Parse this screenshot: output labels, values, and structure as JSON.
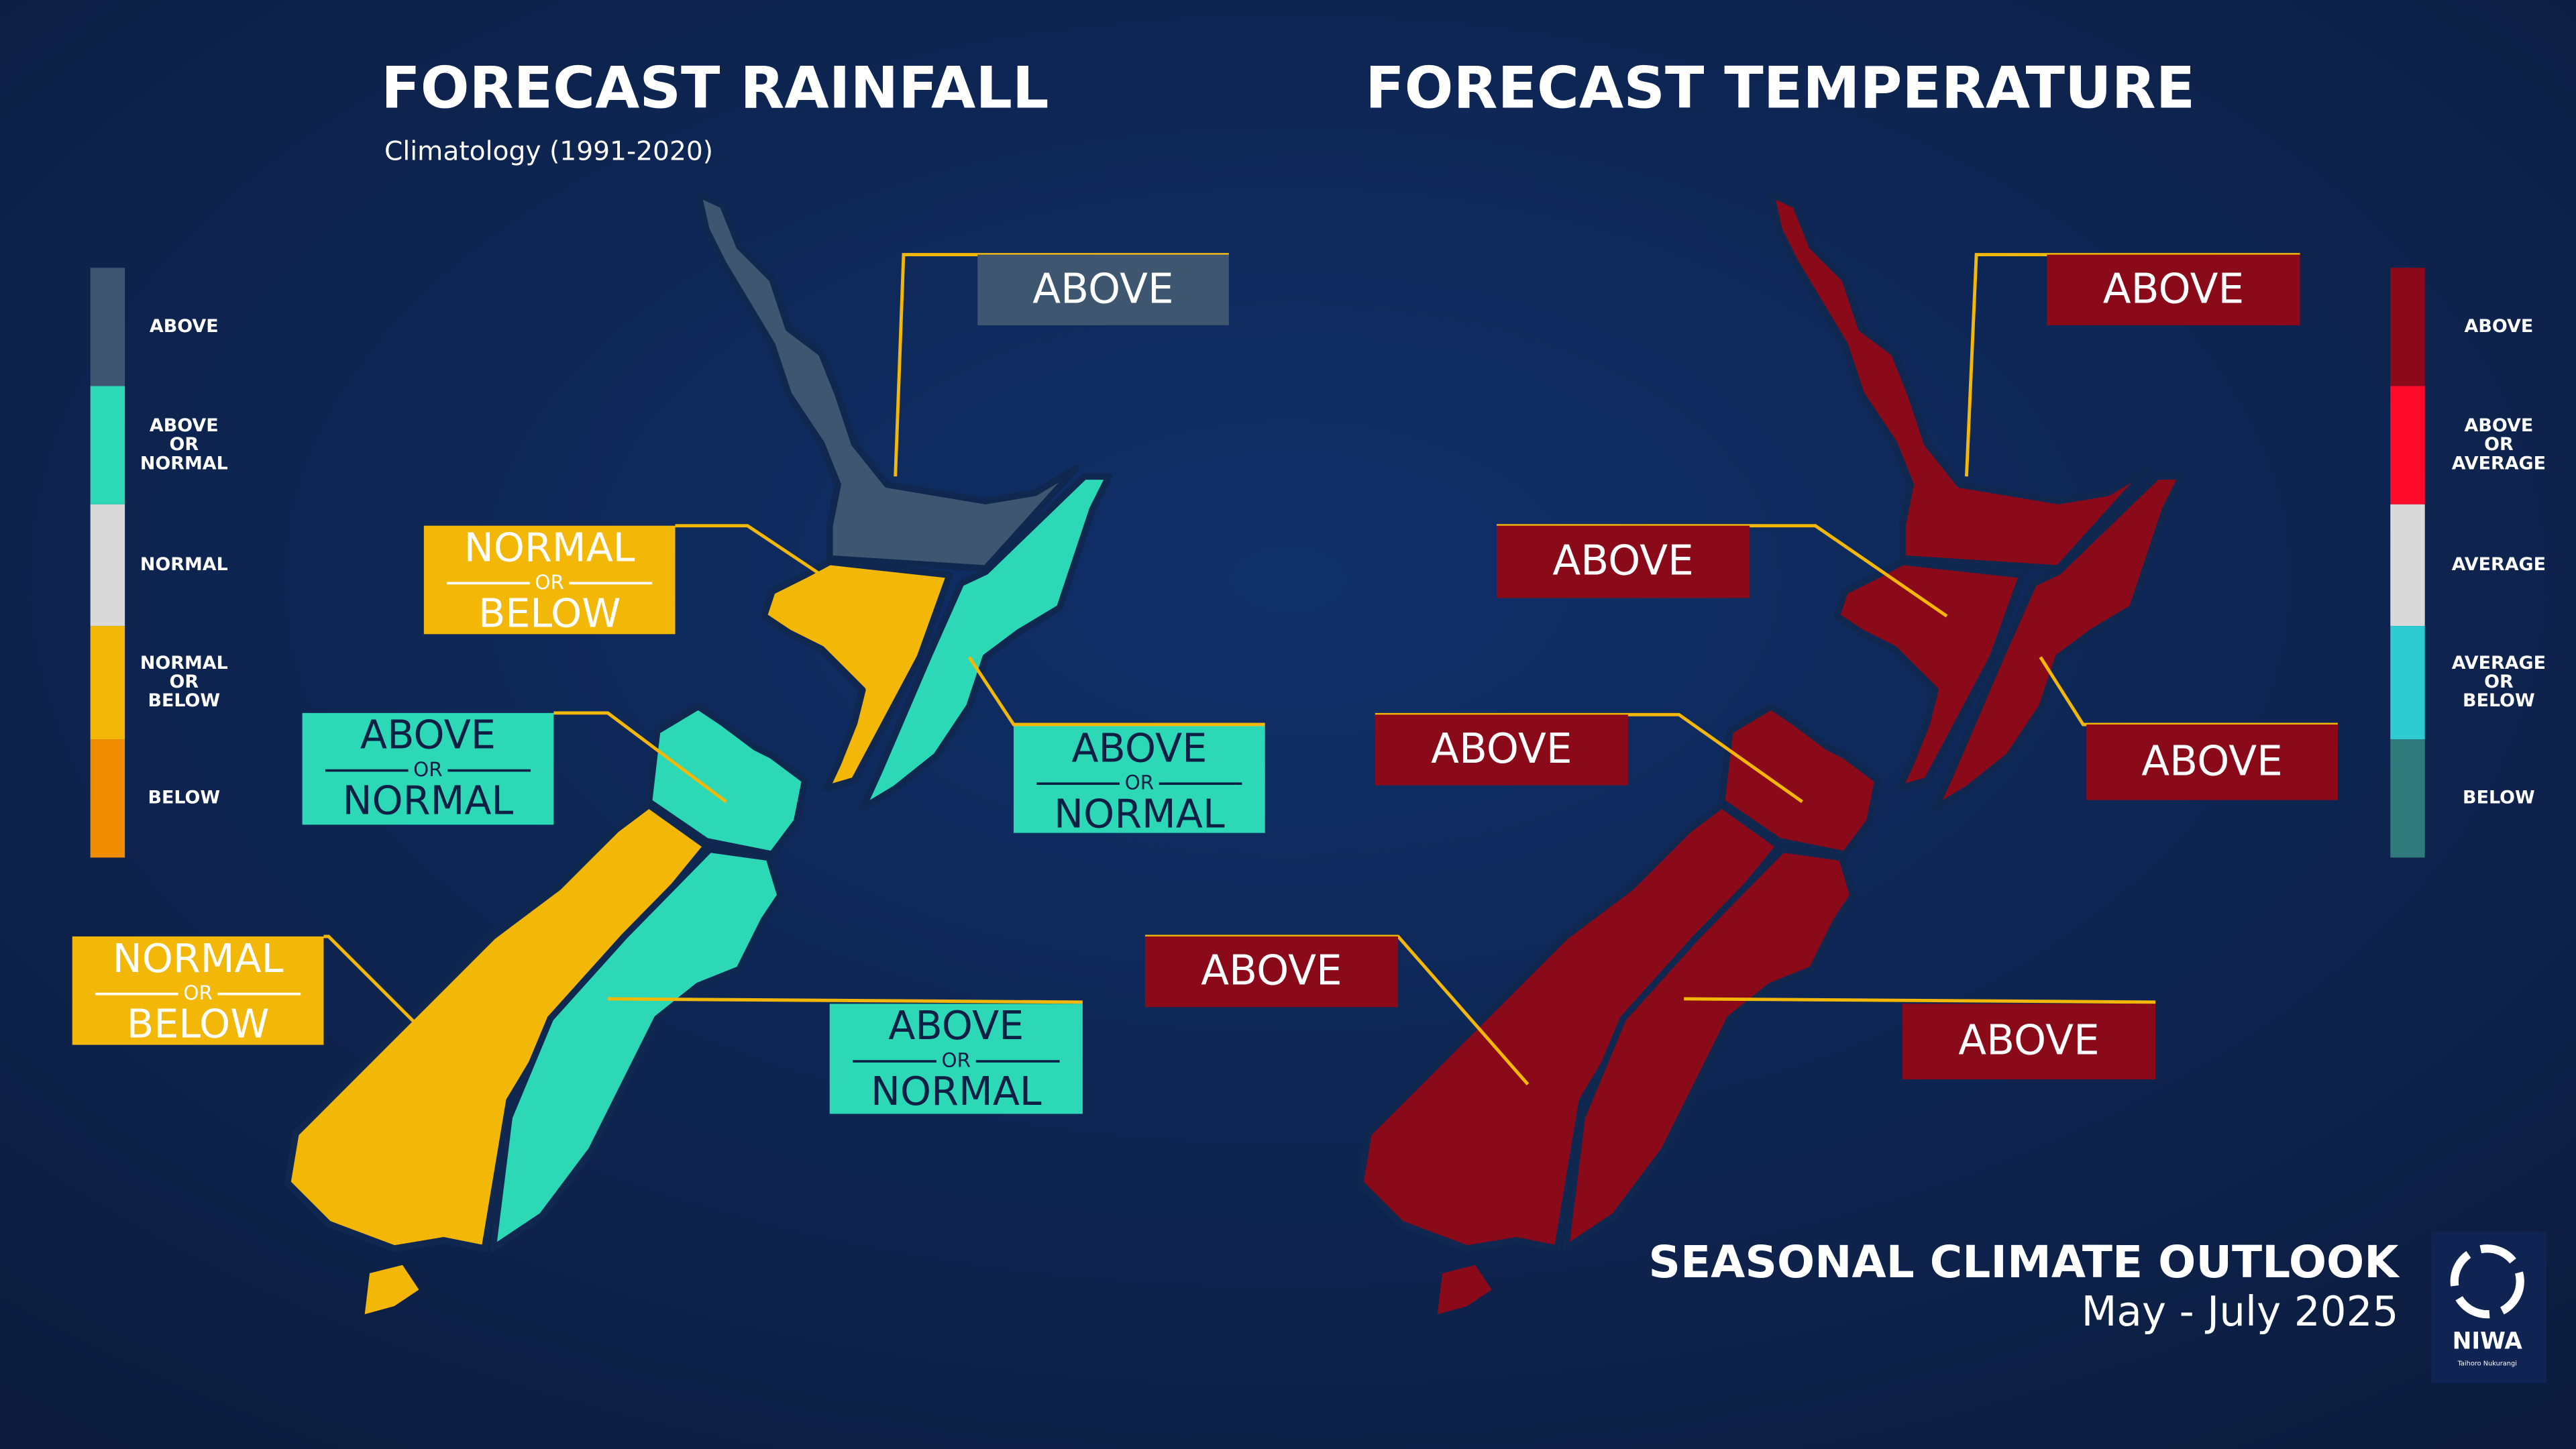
{
  "rainfall": {
    "title": "FORECAST RAINFALL",
    "subtitle": "Climatology (1991-2020)",
    "legend": [
      {
        "lines": [
          "ABOVE"
        ],
        "color": "#3e5670"
      },
      {
        "lines": [
          "ABOVE",
          "OR",
          "NORMAL"
        ],
        "color": "#2dd8b6"
      },
      {
        "lines": [
          "NORMAL"
        ],
        "color": "#d9d9d9"
      },
      {
        "lines": [
          "NORMAL",
          "OR",
          "BELOW"
        ],
        "color": "#f2b707"
      },
      {
        "lines": [
          "BELOW"
        ],
        "color": "#f08c00"
      }
    ],
    "regions": [
      {
        "lines": [
          "ABOVE"
        ],
        "color": "#3e5670",
        "text_color": "#ffffff"
      },
      {
        "lines": [
          "NORMAL",
          "OR",
          "BELOW"
        ],
        "color": "#f2b707",
        "text_color": "#ffffff"
      },
      {
        "lines": [
          "ABOVE",
          "OR",
          "NORMAL"
        ],
        "color": "#2dd8b6",
        "text_color": "#0d1f45"
      },
      {
        "lines": [
          "ABOVE",
          "OR",
          "NORMAL"
        ],
        "color": "#2dd8b6",
        "text_color": "#0d1f45"
      },
      {
        "lines": [
          "NORMAL",
          "OR",
          "BELOW"
        ],
        "color": "#f2b707",
        "text_color": "#ffffff"
      },
      {
        "lines": [
          "ABOVE",
          "OR",
          "NORMAL"
        ],
        "color": "#2dd8b6",
        "text_color": "#0d1f45"
      }
    ]
  },
  "temperature": {
    "title": "FORECAST TEMPERATURE",
    "legend": [
      {
        "lines": [
          "ABOVE"
        ],
        "color": "#8b0a1a"
      },
      {
        "lines": [
          "ABOVE",
          "OR",
          "AVERAGE"
        ],
        "color": "#ff0a2a"
      },
      {
        "lines": [
          "AVERAGE"
        ],
        "color": "#d9d9d9"
      },
      {
        "lines": [
          "AVERAGE",
          "OR",
          "BELOW"
        ],
        "color": "#2ecbd2"
      },
      {
        "lines": [
          "BELOW"
        ],
        "color": "#2f7a7a"
      }
    ],
    "regions": [
      {
        "lines": [
          "ABOVE"
        ],
        "color": "#8b0a1a",
        "text_color": "#ffffff"
      },
      {
        "lines": [
          "ABOVE"
        ],
        "color": "#8b0a1a",
        "text_color": "#ffffff"
      },
      {
        "lines": [
          "ABOVE"
        ],
        "color": "#8b0a1a",
        "text_color": "#ffffff"
      },
      {
        "lines": [
          "ABOVE"
        ],
        "color": "#8b0a1a",
        "text_color": "#ffffff"
      },
      {
        "lines": [
          "ABOVE"
        ],
        "color": "#8b0a1a",
        "text_color": "#ffffff"
      },
      {
        "lines": [
          "ABOVE"
        ],
        "color": "#8b0a1a",
        "text_color": "#ffffff"
      }
    ]
  },
  "footer": {
    "title": "SEASONAL CLIMATE OUTLOOK",
    "subtitle": "May - July 2025",
    "logo": {
      "name": "NIWA",
      "tagline": "Taihoro Nukurangi"
    }
  }
}
